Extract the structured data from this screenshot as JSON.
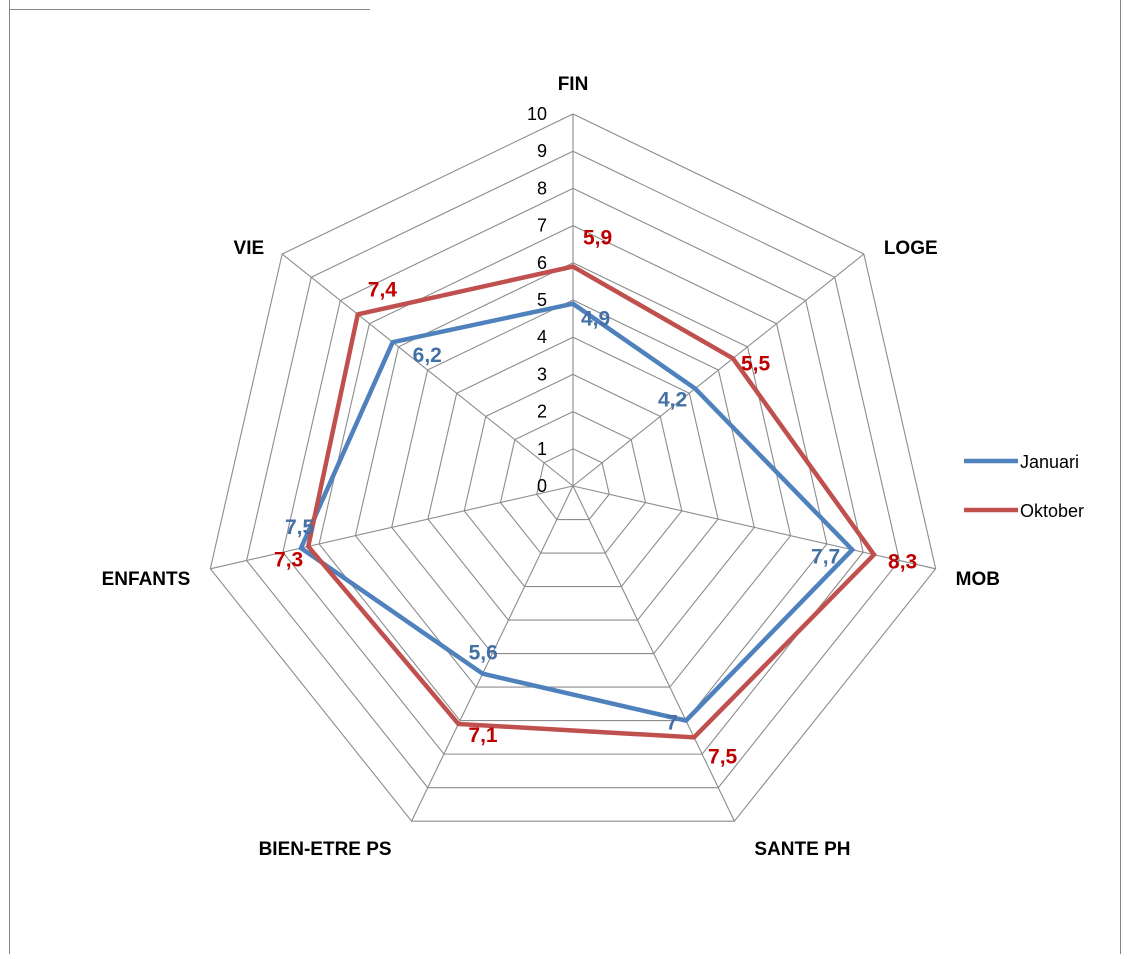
{
  "chart_data": {
    "type": "radar",
    "title": "",
    "categories": [
      "FIN",
      "LOGE",
      "MOB",
      "SANTE PH",
      "BIEN-ETRE PS",
      "ENFANTS",
      "VIE"
    ],
    "rlim": [
      0,
      10
    ],
    "ticks": [
      "0",
      "1",
      "2",
      "3",
      "4",
      "5",
      "6",
      "7",
      "8",
      "9",
      "10"
    ],
    "grid": true,
    "legend": "right",
    "series": [
      {
        "name": "Januari",
        "color": "#4F81BD",
        "label_color": "#4470A6",
        "values": [
          4.9,
          4.2,
          7.7,
          7,
          5.6,
          7.5,
          6.2
        ],
        "labels": [
          "4,9",
          "4,2",
          "7,7",
          "7",
          "5,6",
          "7,5",
          "6,2"
        ]
      },
      {
        "name": "Oktober",
        "color": "#C0504D",
        "label_color": "#C00000",
        "values": [
          5.9,
          5.5,
          8.3,
          7.5,
          7.1,
          7.3,
          7.4
        ],
        "labels": [
          "5,9",
          "5,5",
          "8,3",
          "7,5",
          "7,1",
          "7,3",
          "7,4"
        ]
      }
    ]
  }
}
